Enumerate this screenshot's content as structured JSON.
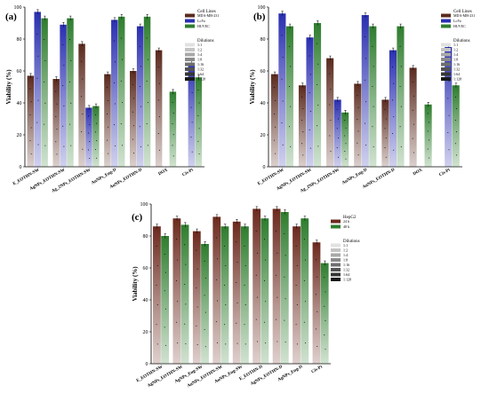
{
  "chart_data": [
    {
      "panel": "(a)",
      "type": "bar",
      "ylabel": "Viability (%)",
      "ylim": [
        0,
        100
      ],
      "yticks": [
        0,
        20,
        40,
        60,
        80,
        100
      ],
      "categories": [
        "E_EOTHN-SW",
        "AgNPs_EOTHN-SW",
        "Ag_2NPs_EOTHN-SW",
        "AuNPs_Eug-D",
        "AuNPs_EOTHN-D",
        "DOX",
        "Cis-Pt"
      ],
      "series": [
        {
          "name": "MDA-MB-231",
          "color": "#5a2a1e",
          "values": [
            57,
            55,
            77,
            58,
            60,
            73,
            null
          ]
        },
        {
          "name": "LoVo",
          "color": "#2a2fb0",
          "values": [
            97,
            89,
            37,
            92,
            88,
            null,
            65
          ]
        },
        {
          "name": "HUVEC",
          "color": "#2e7d2e",
          "values": [
            93,
            93,
            38,
            94,
            94,
            47,
            56
          ]
        }
      ],
      "legend_title": "Cell Lines",
      "legend_position": "top-right",
      "dilution_title": "Dilutions",
      "dilutions": [
        "1:1",
        "1:2",
        "1:4",
        "1:8",
        "1:16",
        "1:32",
        "1:64",
        "1:128"
      ]
    },
    {
      "panel": "(b)",
      "type": "bar",
      "ylabel": "Viability (%)",
      "ylim": [
        0,
        100
      ],
      "yticks": [
        0,
        20,
        40,
        60,
        80,
        100
      ],
      "categories": [
        "E_EOTHN-SW",
        "AgNPs_EOTHN-SW",
        "Ag_2NPs_EOTHN-SW",
        "AuNPs_Eug-D",
        "AuNPs_EOTHN-D",
        "DOX",
        "Cis-Pt"
      ],
      "series": [
        {
          "name": "MDA-MB-231",
          "color": "#5a2a1e",
          "values": [
            58,
            51,
            68,
            52,
            42,
            62,
            null
          ]
        },
        {
          "name": "LoVo",
          "color": "#2a2fb0",
          "values": [
            96,
            81,
            42,
            95,
            73,
            null,
            75
          ]
        },
        {
          "name": "HUVEC",
          "color": "#2e7d2e",
          "values": [
            88,
            90,
            34,
            88,
            88,
            39,
            51
          ]
        }
      ],
      "legend_title": "Cell Lines",
      "legend_position": "top-right",
      "dilution_title": "Dilutions",
      "dilutions": [
        "1:1",
        "1:2",
        "1:4",
        "1:8",
        "1:16",
        "1:32",
        "1:64",
        "1:128"
      ]
    },
    {
      "panel": "(c)",
      "type": "bar",
      "ylabel": "Viability (%)",
      "ylim": [
        0,
        100
      ],
      "yticks": [
        0,
        20,
        40,
        60,
        80,
        100
      ],
      "categories": [
        "E_EOTHN-SW",
        "AgNPs_EOTHN-SW",
        "AgNPs_Eug-SW",
        "AuNPs_EOTHN-SW",
        "AuNPs_Eug-SW",
        "E_EOTHN-D",
        "AgNPs_EOTHN-D",
        "AgNPs_Eug-D",
        "Cis-Pt"
      ],
      "series": [
        {
          "name": "24 h",
          "color": "#6b2a1e",
          "values": [
            86,
            91,
            83,
            92,
            89,
            97,
            97,
            86,
            76
          ]
        },
        {
          "name": "48 h",
          "color": "#2e7d2e",
          "values": [
            80,
            87,
            75,
            86,
            86,
            91,
            95,
            91,
            63
          ]
        }
      ],
      "legend_title": "HepG2",
      "legend_position": "top-right",
      "dilution_title": "Dilutions",
      "dilutions": [
        "1:1",
        "1:2",
        "1:4",
        "1:8",
        "1:16",
        "1:32",
        "1:64",
        "1:128"
      ]
    }
  ]
}
